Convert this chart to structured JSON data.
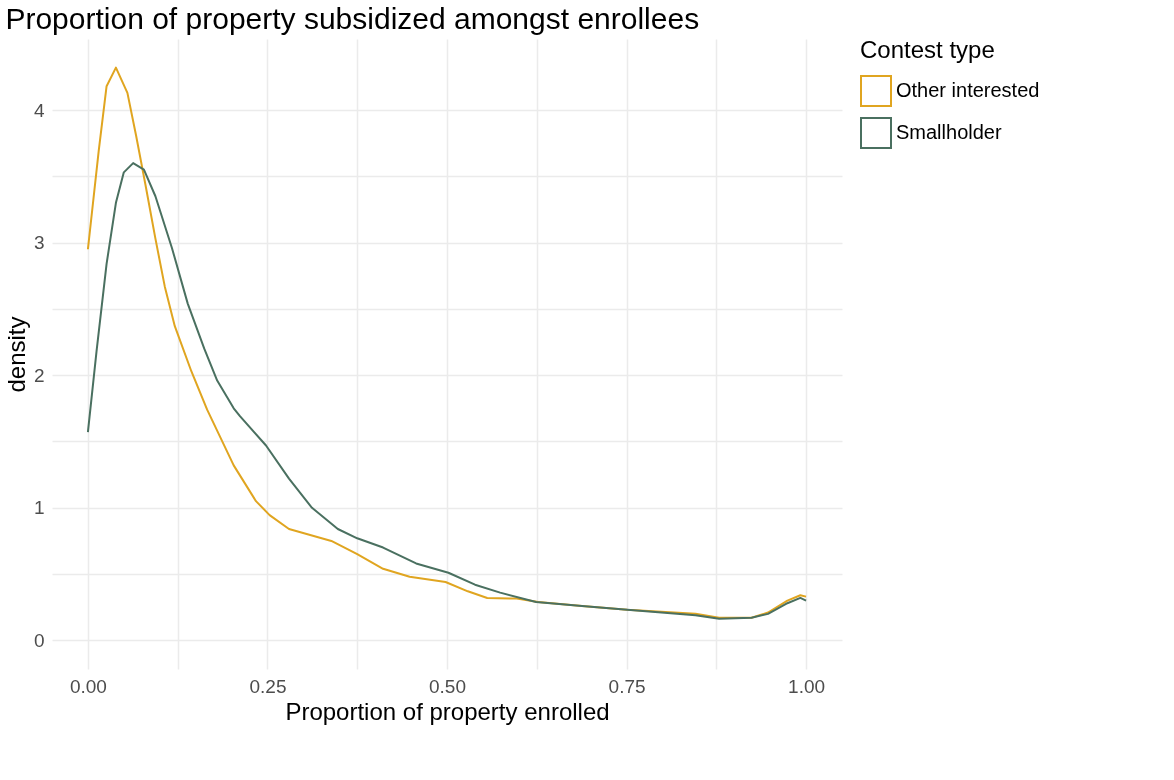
{
  "chart_data": {
    "type": "line",
    "title": "Proportion of property subsidized amongst enrollees",
    "xlabel": "Proportion of property enrolled",
    "ylabel": "density",
    "legend_title": "Contest type",
    "legend": "right",
    "grid": true,
    "line_style": "solid",
    "marker": "none",
    "xlim": [
      -0.05,
      1.05
    ],
    "ylim": [
      -0.216,
      4.536
    ],
    "xticks": [
      {
        "value": 0,
        "label": "0.00"
      },
      {
        "value": 0.125,
        "label": null
      },
      {
        "value": 0.25,
        "label": "0.25"
      },
      {
        "value": 0.375,
        "label": null
      },
      {
        "value": 0.5,
        "label": "0.50"
      },
      {
        "value": 0.625,
        "label": null
      },
      {
        "value": 0.75,
        "label": "0.75"
      },
      {
        "value": 0.875,
        "label": null
      },
      {
        "value": 1,
        "label": "1.00"
      }
    ],
    "yticks": [
      0,
      {
        "value": 0.5,
        "label": null
      },
      1,
      {
        "value": 1.5,
        "label": null
      },
      2,
      {
        "value": 2.5,
        "label": null
      },
      3,
      {
        "value": 3.5,
        "label": null
      },
      4
    ],
    "series": [
      {
        "name": "Other interested",
        "color": "#e0a520",
        "x": [
          0.0,
          0.015,
          0.026,
          0.039,
          0.055,
          0.067,
          0.08,
          0.094,
          0.107,
          0.121,
          0.144,
          0.166,
          0.203,
          0.234,
          0.253,
          0.28,
          0.339,
          0.375,
          0.411,
          0.448,
          0.498,
          0.529,
          0.556,
          0.597,
          0.627,
          0.688,
          0.751,
          0.846,
          0.879,
          0.924,
          0.947,
          0.974,
          0.992,
          1.0
        ],
        "values": [
          2.95,
          3.69,
          4.18,
          4.32,
          4.13,
          3.81,
          3.44,
          3.03,
          2.67,
          2.37,
          2.03,
          1.74,
          1.32,
          1.05,
          0.945,
          0.84,
          0.75,
          0.65,
          0.54,
          0.48,
          0.44,
          0.37,
          0.32,
          0.315,
          0.29,
          0.26,
          0.23,
          0.2,
          0.17,
          0.17,
          0.21,
          0.3,
          0.34,
          0.33
        ]
      },
      {
        "name": "Smallholder",
        "color": "#4a7060",
        "x": [
          0.0,
          0.012,
          0.026,
          0.039,
          0.05,
          0.063,
          0.078,
          0.094,
          0.117,
          0.139,
          0.162,
          0.18,
          0.203,
          0.212,
          0.248,
          0.28,
          0.312,
          0.348,
          0.375,
          0.411,
          0.457,
          0.502,
          0.539,
          0.574,
          0.624,
          0.688,
          0.751,
          0.846,
          0.879,
          0.924,
          0.947,
          0.974,
          0.992,
          1.0
        ],
        "values": [
          1.57,
          2.18,
          2.84,
          3.3,
          3.53,
          3.6,
          3.55,
          3.35,
          2.96,
          2.54,
          2.2,
          1.96,
          1.75,
          1.69,
          1.47,
          1.22,
          1.0,
          0.84,
          0.77,
          0.7,
          0.58,
          0.51,
          0.42,
          0.36,
          0.29,
          0.26,
          0.23,
          0.19,
          0.163,
          0.17,
          0.2,
          0.28,
          0.32,
          0.3
        ]
      }
    ]
  }
}
